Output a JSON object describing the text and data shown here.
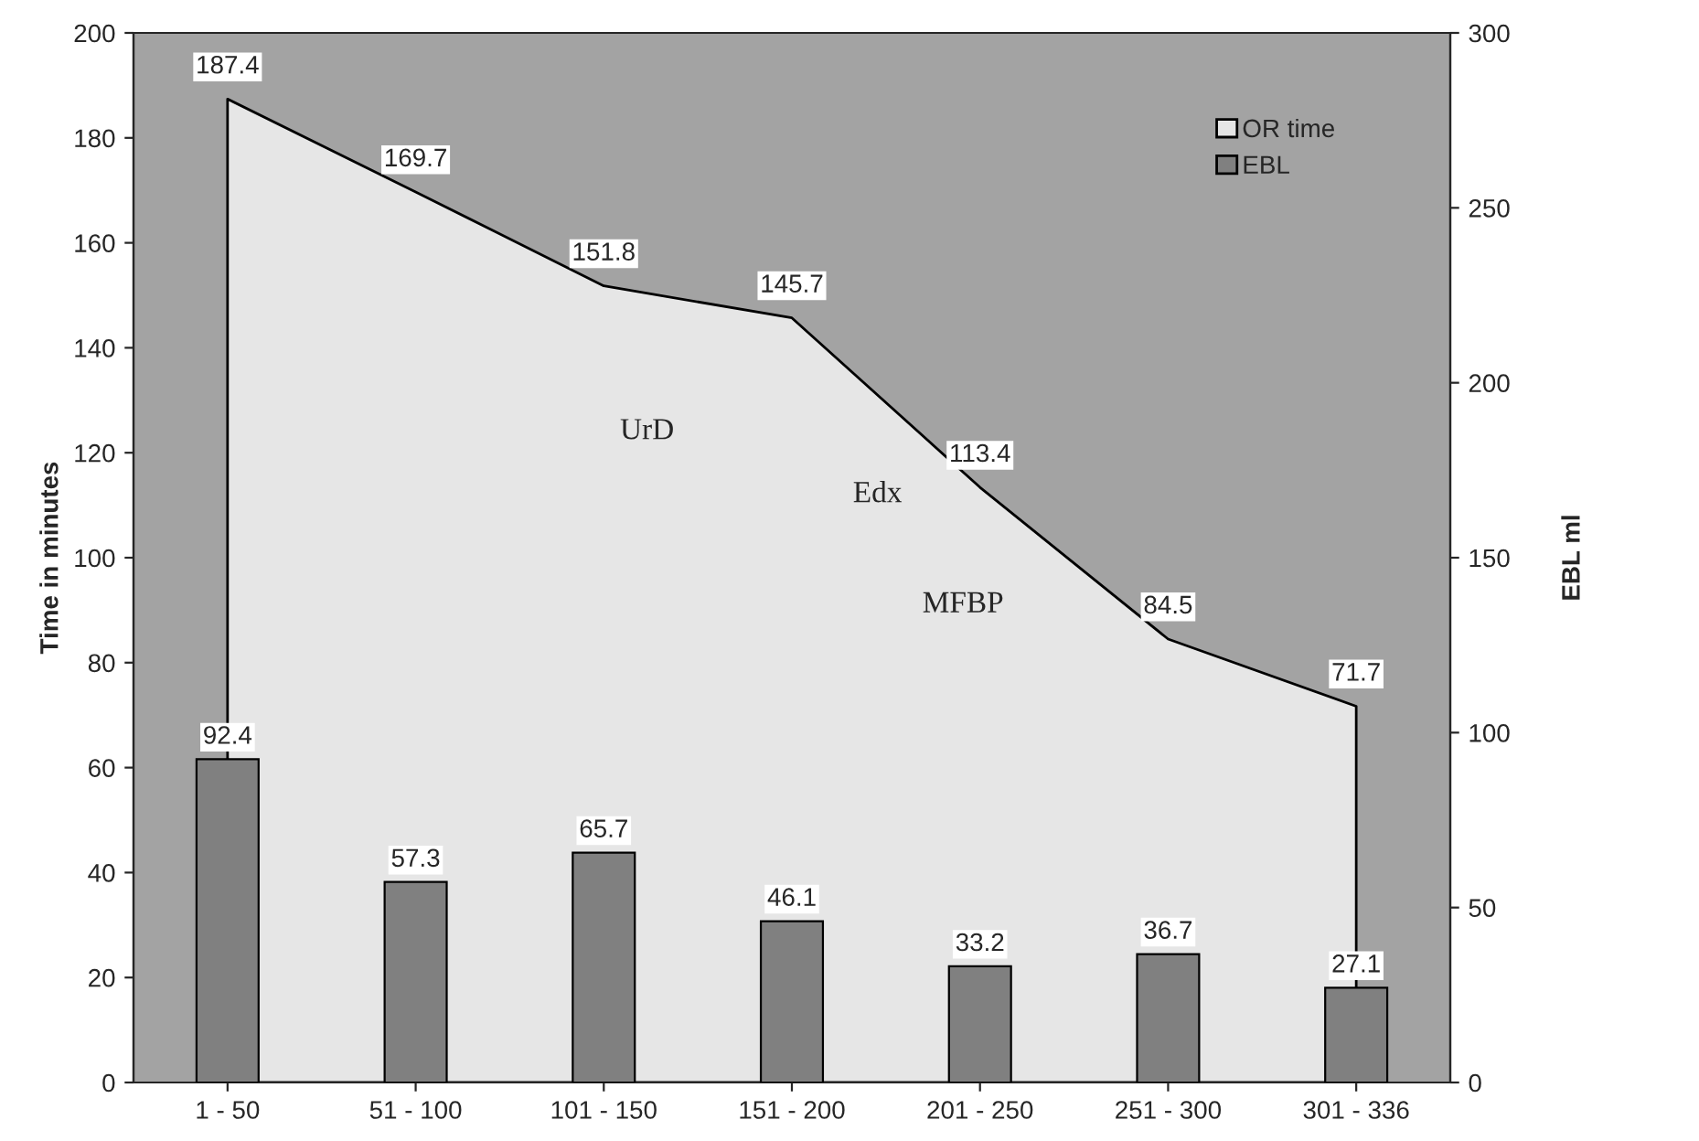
{
  "chart_data": {
    "type": "bar",
    "categories": [
      "1 - 50",
      "51 - 100",
      "101 - 150",
      "151 - 200",
      "201 - 250",
      "251 - 300",
      "301 - 336"
    ],
    "series": [
      {
        "name": "OR time",
        "type": "area",
        "color": "#e6e6e6",
        "values": [
          187.4,
          169.7,
          151.8,
          145.7,
          113.4,
          84.5,
          71.7
        ]
      },
      {
        "name": "EBL",
        "axis": "y2",
        "color": "#808080",
        "values": [
          92.4,
          57.3,
          65.7,
          46.1,
          33.2,
          36.7,
          27.1
        ]
      }
    ],
    "ylabel": "Time in minutes",
    "y2label": "EBL ml",
    "ylim": [
      0,
      200
    ],
    "yticks": [
      0,
      20,
      40,
      60,
      80,
      100,
      120,
      140,
      160,
      180,
      200
    ],
    "y2lim": [
      0,
      300
    ],
    "y2ticks": [
      0,
      50,
      100,
      150,
      200,
      250,
      300
    ],
    "annotations": [
      "UrD",
      "Edx",
      "MFBP"
    ],
    "data_labels": true,
    "legend": "top right",
    "grid": false
  }
}
